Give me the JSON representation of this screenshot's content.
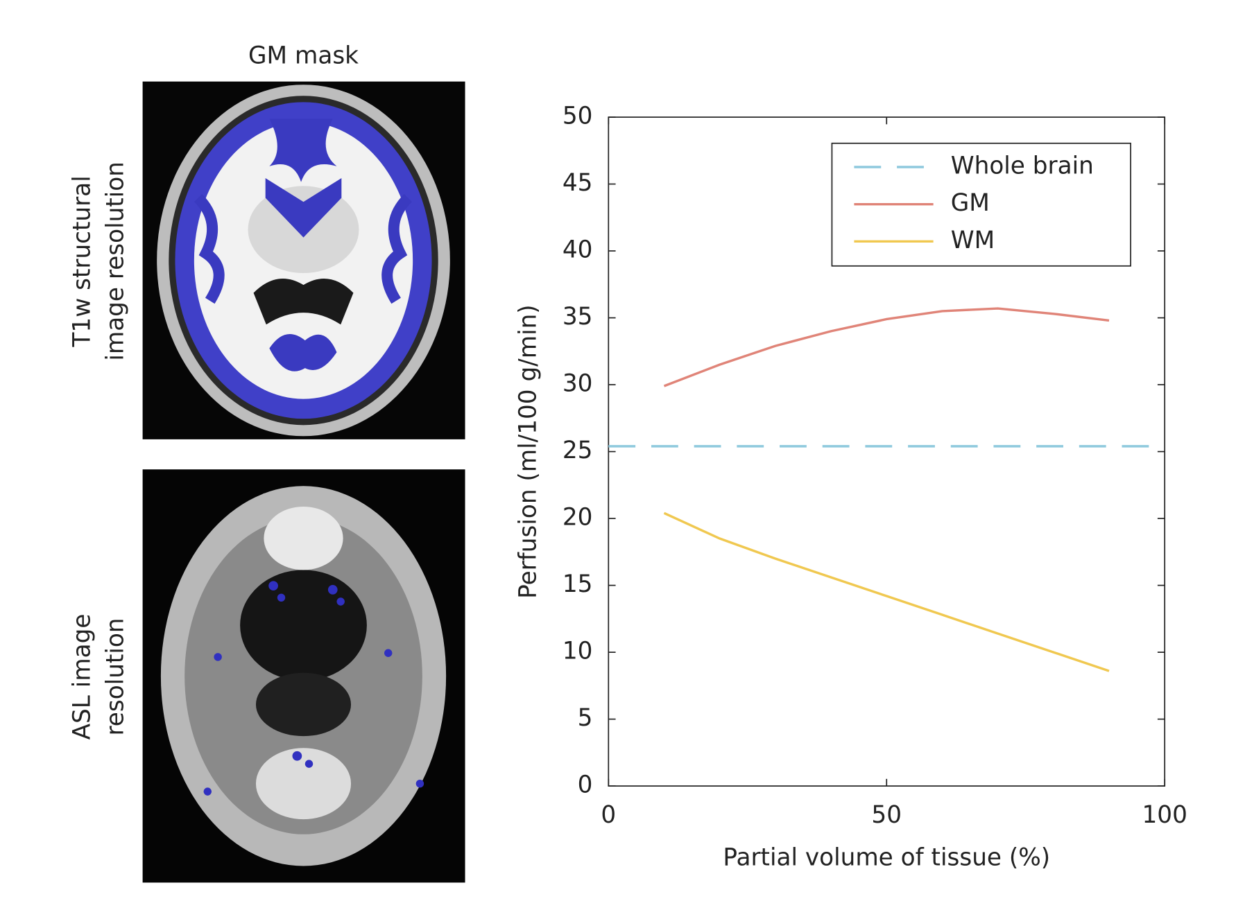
{
  "figure": {
    "title": "GM mask",
    "row_labels": [
      [
        "T1w structural",
        "image resolution"
      ],
      [
        "ASL image",
        "resolution"
      ]
    ]
  },
  "chart_data": {
    "type": "line",
    "xlabel": "Partial volume of tissue (%)",
    "ylabel": "Perfusion (ml/100 g/min)",
    "xlim": [
      0,
      100
    ],
    "xticks": [
      0,
      50,
      100
    ],
    "ylim": [
      0,
      50
    ],
    "yticks": [
      0,
      5,
      10,
      15,
      20,
      25,
      30,
      35,
      40,
      45,
      50
    ],
    "legend": "upper right",
    "series": [
      {
        "name": "Whole brain",
        "color": "#8ec9dd",
        "dash": true,
        "x": [
          0,
          100
        ],
        "values": [
          25.4,
          25.4
        ]
      },
      {
        "name": "GM",
        "color": "#e08478",
        "dash": false,
        "x": [
          10,
          20,
          30,
          40,
          50,
          60,
          70,
          80,
          90
        ],
        "values": [
          29.9,
          31.5,
          32.9,
          34.0,
          34.9,
          35.5,
          35.7,
          35.3,
          34.8
        ]
      },
      {
        "name": "WM",
        "color": "#f0c850",
        "dash": false,
        "x": [
          10,
          20,
          30,
          40,
          50,
          60,
          70,
          80,
          90
        ],
        "values": [
          20.4,
          18.5,
          17.0,
          15.6,
          14.2,
          12.8,
          11.4,
          10.0,
          8.6
        ]
      }
    ]
  }
}
